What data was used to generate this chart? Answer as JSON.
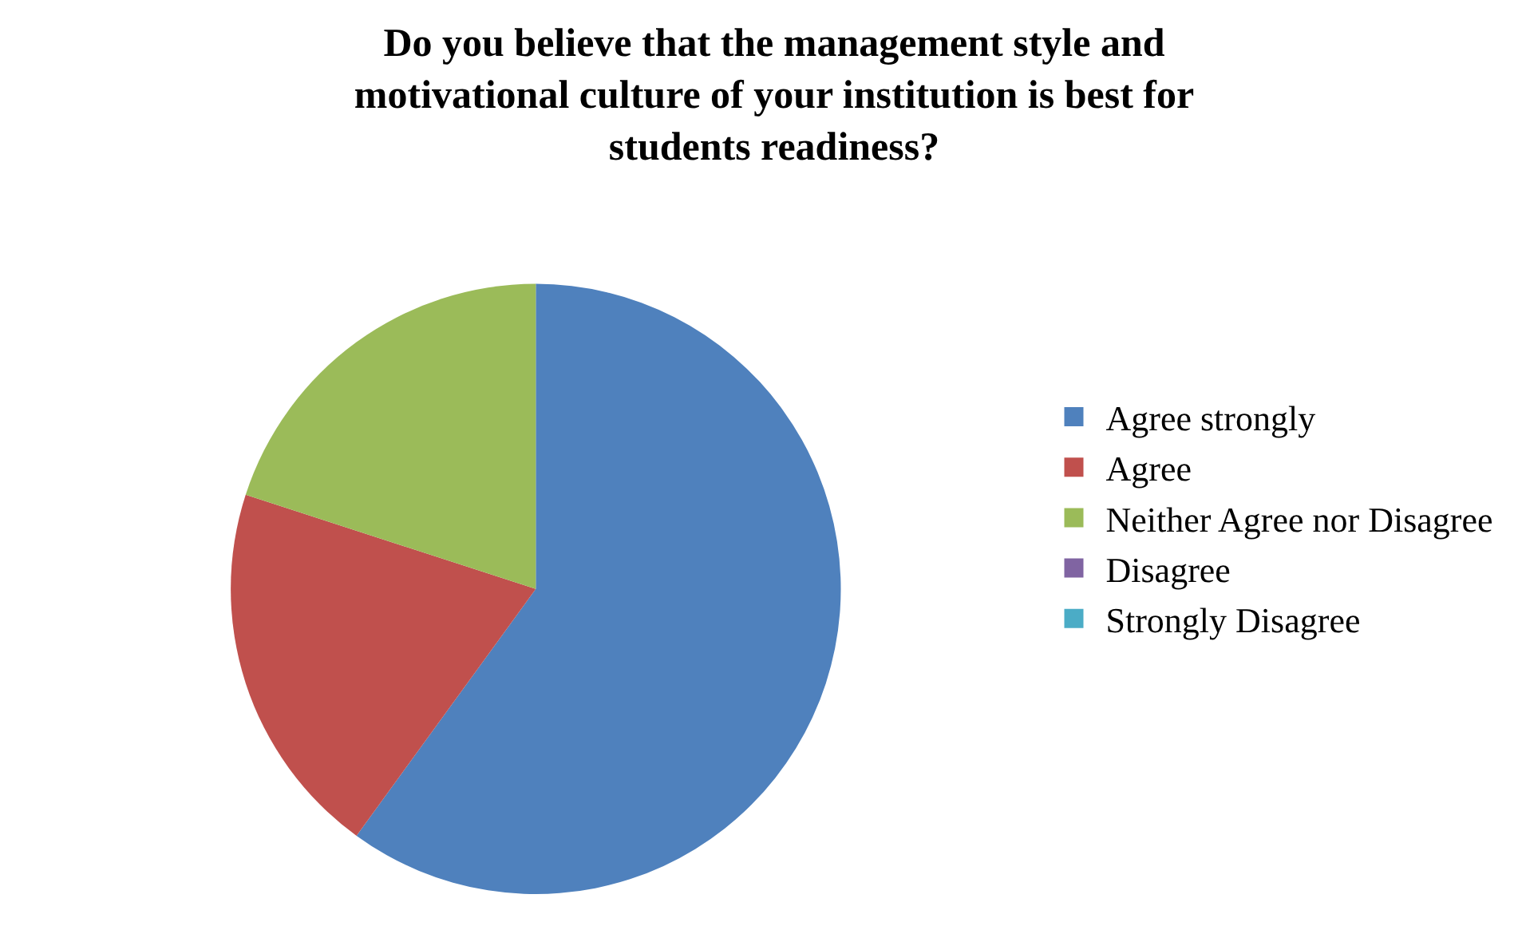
{
  "chart_data": {
    "type": "pie",
    "title": "Do you believe that the management style and\nmotivational culture of your institution is best for\nstudents readiness?",
    "categories": [
      "Agree strongly",
      "Agree",
      "Neither Agree nor Disagree",
      "Disagree",
      "Strongly Disagree"
    ],
    "values": [
      60,
      20,
      20,
      0,
      0
    ],
    "colors": [
      "#4f81bd",
      "#c0504d",
      "#9bbb59",
      "#8064a2",
      "#4bacc6"
    ],
    "legend": "right"
  }
}
